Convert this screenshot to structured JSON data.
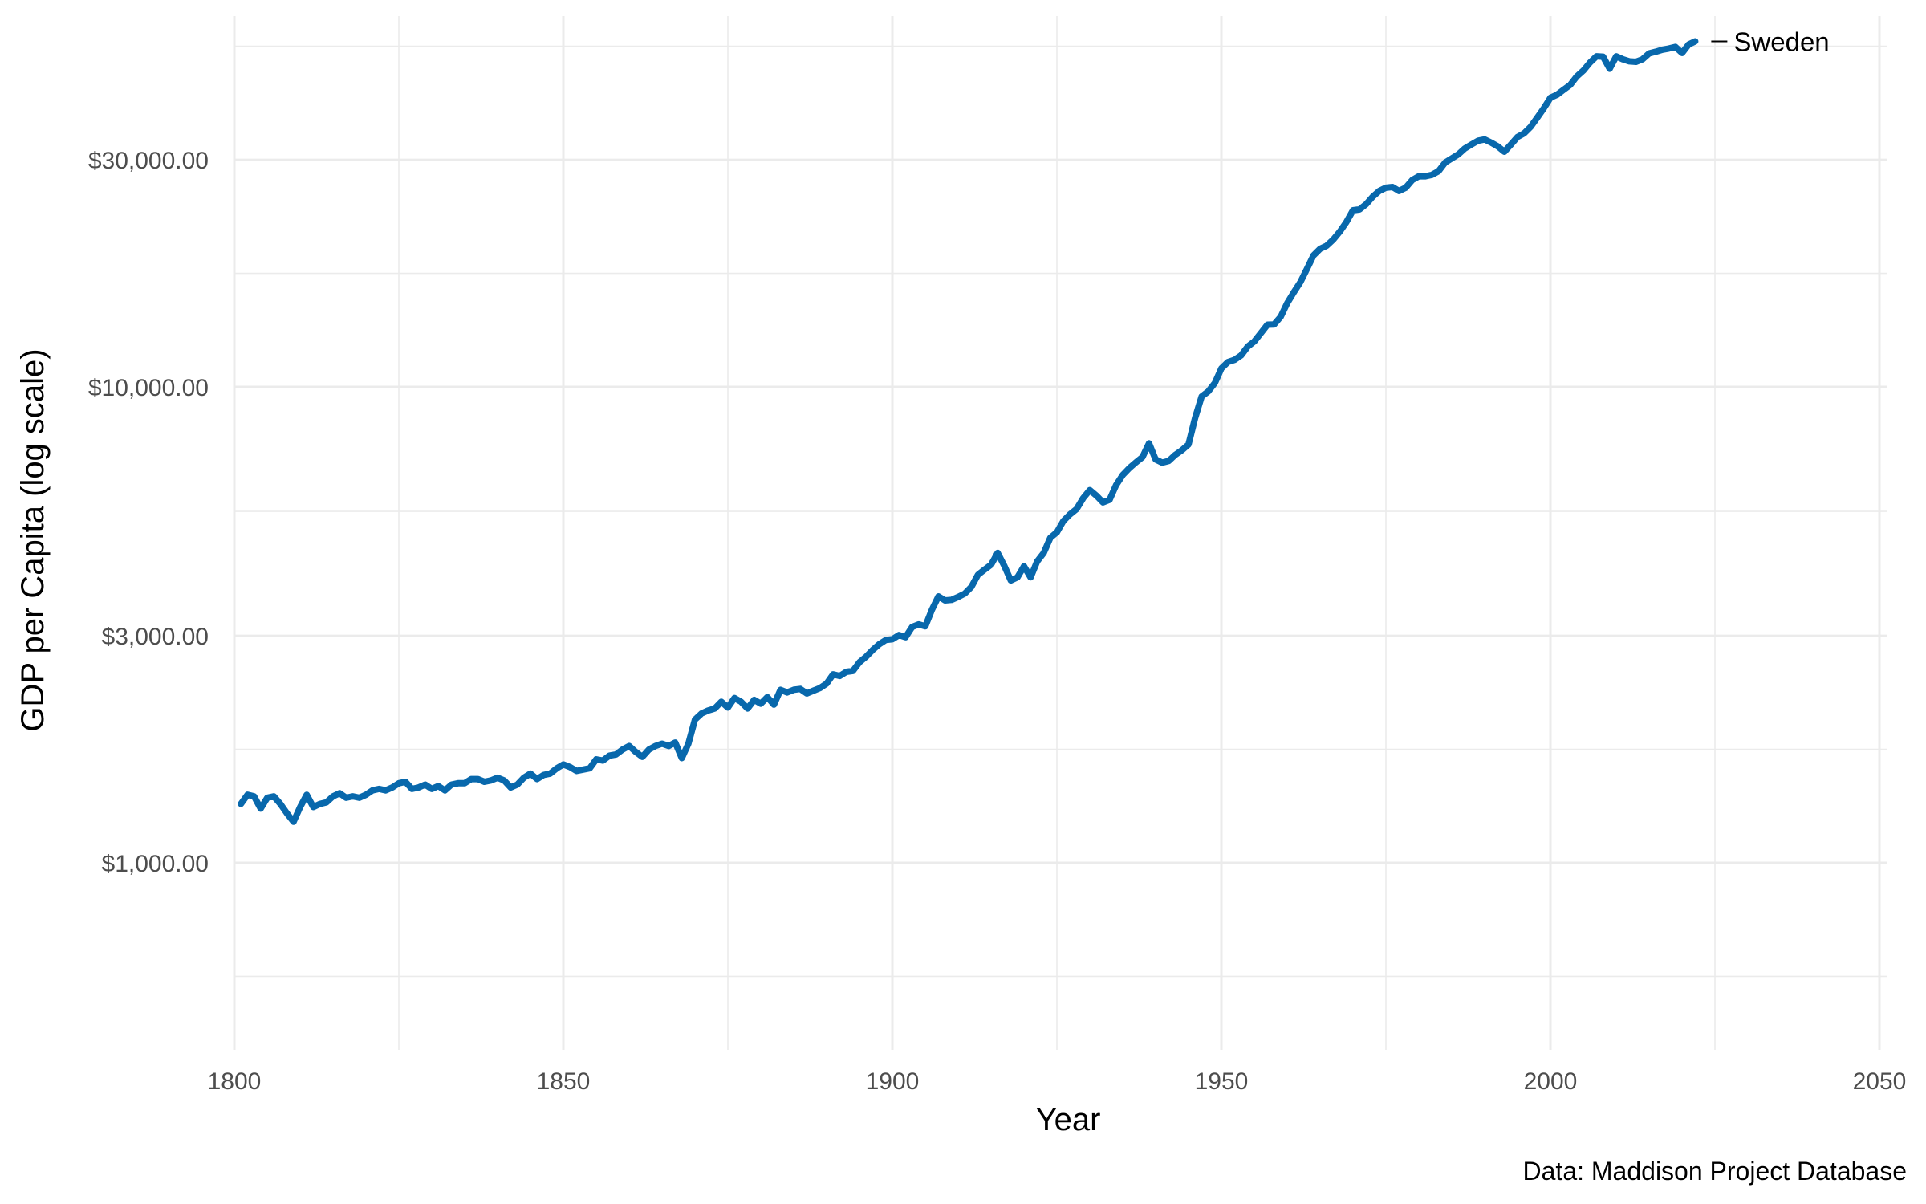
{
  "chart_data": {
    "type": "line",
    "title": "",
    "xlabel": "Year",
    "ylabel": "GDP per Capita (log scale)",
    "caption": "Data: Maddison Project Database",
    "y_scale": "log",
    "xlim": [
      1800,
      2050
    ],
    "ylim": [
      550,
      55000
    ],
    "x_ticks": [
      1800,
      1850,
      1900,
      1950,
      2000,
      2050
    ],
    "x_tick_labels": [
      "1800",
      "1850",
      "1900",
      "1950",
      "2000",
      "2050"
    ],
    "y_ticks": [
      1000,
      3000,
      10000,
      30000
    ],
    "y_tick_labels": [
      "$1,000.00",
      "$3,000.00",
      "$10,000.00",
      "$30,000.00"
    ],
    "grid": true,
    "legend": "none (direct label at line end)",
    "colors": {
      "line": "#0868ac",
      "grid": "#ebebeb",
      "tick_text": "#4d4d4d"
    },
    "series": [
      {
        "name": "Sweden",
        "points": [
          [
            1801,
            1330
          ],
          [
            1802,
            1390
          ],
          [
            1803,
            1380
          ],
          [
            1804,
            1300
          ],
          [
            1805,
            1370
          ],
          [
            1806,
            1380
          ],
          [
            1807,
            1330
          ],
          [
            1808,
            1270
          ],
          [
            1809,
            1220
          ],
          [
            1810,
            1310
          ],
          [
            1811,
            1390
          ],
          [
            1812,
            1310
          ],
          [
            1813,
            1330
          ],
          [
            1814,
            1340
          ],
          [
            1815,
            1380
          ],
          [
            1816,
            1400
          ],
          [
            1817,
            1370
          ],
          [
            1818,
            1380
          ],
          [
            1819,
            1370
          ],
          [
            1820,
            1390
          ],
          [
            1821,
            1420
          ],
          [
            1822,
            1430
          ],
          [
            1823,
            1420
          ],
          [
            1824,
            1440
          ],
          [
            1825,
            1470
          ],
          [
            1826,
            1480
          ],
          [
            1827,
            1430
          ],
          [
            1828,
            1440
          ],
          [
            1829,
            1460
          ],
          [
            1830,
            1430
          ],
          [
            1831,
            1450
          ],
          [
            1832,
            1420
          ],
          [
            1833,
            1460
          ],
          [
            1834,
            1470
          ],
          [
            1835,
            1470
          ],
          [
            1836,
            1500
          ],
          [
            1837,
            1500
          ],
          [
            1838,
            1480
          ],
          [
            1839,
            1490
          ],
          [
            1840,
            1510
          ],
          [
            1841,
            1490
          ],
          [
            1842,
            1440
          ],
          [
            1843,
            1460
          ],
          [
            1844,
            1510
          ],
          [
            1845,
            1540
          ],
          [
            1846,
            1500
          ],
          [
            1847,
            1530
          ],
          [
            1848,
            1540
          ],
          [
            1849,
            1580
          ],
          [
            1850,
            1610
          ],
          [
            1851,
            1590
          ],
          [
            1852,
            1560
          ],
          [
            1853,
            1570
          ],
          [
            1854,
            1580
          ],
          [
            1855,
            1650
          ],
          [
            1856,
            1640
          ],
          [
            1857,
            1680
          ],
          [
            1858,
            1690
          ],
          [
            1859,
            1730
          ],
          [
            1860,
            1760
          ],
          [
            1861,
            1710
          ],
          [
            1862,
            1670
          ],
          [
            1863,
            1730
          ],
          [
            1864,
            1760
          ],
          [
            1865,
            1780
          ],
          [
            1866,
            1760
          ],
          [
            1867,
            1790
          ],
          [
            1868,
            1660
          ],
          [
            1869,
            1780
          ],
          [
            1870,
            2000
          ],
          [
            1871,
            2060
          ],
          [
            1872,
            2090
          ],
          [
            1873,
            2110
          ],
          [
            1874,
            2180
          ],
          [
            1875,
            2120
          ],
          [
            1876,
            2220
          ],
          [
            1877,
            2180
          ],
          [
            1878,
            2110
          ],
          [
            1879,
            2200
          ],
          [
            1880,
            2160
          ],
          [
            1881,
            2230
          ],
          [
            1882,
            2150
          ],
          [
            1883,
            2310
          ],
          [
            1884,
            2280
          ],
          [
            1885,
            2310
          ],
          [
            1886,
            2320
          ],
          [
            1887,
            2270
          ],
          [
            1888,
            2300
          ],
          [
            1889,
            2330
          ],
          [
            1890,
            2380
          ],
          [
            1891,
            2490
          ],
          [
            1892,
            2470
          ],
          [
            1893,
            2520
          ],
          [
            1894,
            2530
          ],
          [
            1895,
            2640
          ],
          [
            1896,
            2710
          ],
          [
            1897,
            2800
          ],
          [
            1898,
            2880
          ],
          [
            1899,
            2940
          ],
          [
            1900,
            2950
          ],
          [
            1901,
            3010
          ],
          [
            1902,
            2980
          ],
          [
            1903,
            3130
          ],
          [
            1904,
            3170
          ],
          [
            1905,
            3140
          ],
          [
            1906,
            3400
          ],
          [
            1907,
            3630
          ],
          [
            1908,
            3560
          ],
          [
            1909,
            3570
          ],
          [
            1910,
            3620
          ],
          [
            1911,
            3680
          ],
          [
            1912,
            3800
          ],
          [
            1913,
            4030
          ],
          [
            1914,
            4130
          ],
          [
            1915,
            4230
          ],
          [
            1916,
            4480
          ],
          [
            1917,
            4210
          ],
          [
            1918,
            3920
          ],
          [
            1919,
            3980
          ],
          [
            1920,
            4200
          ],
          [
            1921,
            3980
          ],
          [
            1922,
            4300
          ],
          [
            1923,
            4480
          ],
          [
            1924,
            4820
          ],
          [
            1925,
            4950
          ],
          [
            1926,
            5230
          ],
          [
            1927,
            5400
          ],
          [
            1928,
            5540
          ],
          [
            1929,
            5840
          ],
          [
            1930,
            6070
          ],
          [
            1931,
            5910
          ],
          [
            1932,
            5720
          ],
          [
            1933,
            5790
          ],
          [
            1934,
            6220
          ],
          [
            1935,
            6530
          ],
          [
            1936,
            6750
          ],
          [
            1937,
            6940
          ],
          [
            1938,
            7120
          ],
          [
            1939,
            7610
          ],
          [
            1940,
            7040
          ],
          [
            1941,
            6930
          ],
          [
            1942,
            6990
          ],
          [
            1943,
            7200
          ],
          [
            1944,
            7360
          ],
          [
            1945,
            7570
          ],
          [
            1946,
            8600
          ],
          [
            1947,
            9550
          ],
          [
            1948,
            9780
          ],
          [
            1949,
            10190
          ],
          [
            1950,
            10940
          ],
          [
            1951,
            11280
          ],
          [
            1952,
            11400
          ],
          [
            1953,
            11650
          ],
          [
            1954,
            12150
          ],
          [
            1955,
            12460
          ],
          [
            1956,
            12970
          ],
          [
            1957,
            13510
          ],
          [
            1958,
            13520
          ],
          [
            1959,
            14030
          ],
          [
            1960,
            14990
          ],
          [
            1961,
            15800
          ],
          [
            1962,
            16600
          ],
          [
            1963,
            17700
          ],
          [
            1964,
            18900
          ],
          [
            1965,
            19500
          ],
          [
            1966,
            19800
          ],
          [
            1967,
            20400
          ],
          [
            1968,
            21200
          ],
          [
            1969,
            22200
          ],
          [
            1970,
            23500
          ],
          [
            1971,
            23600
          ],
          [
            1972,
            24200
          ],
          [
            1973,
            25100
          ],
          [
            1974,
            25800
          ],
          [
            1975,
            26200
          ],
          [
            1976,
            26300
          ],
          [
            1977,
            25800
          ],
          [
            1978,
            26200
          ],
          [
            1979,
            27200
          ],
          [
            1980,
            27700
          ],
          [
            1981,
            27700
          ],
          [
            1982,
            27900
          ],
          [
            1983,
            28400
          ],
          [
            1984,
            29600
          ],
          [
            1985,
            30200
          ],
          [
            1986,
            30800
          ],
          [
            1987,
            31700
          ],
          [
            1988,
            32300
          ],
          [
            1989,
            32900
          ],
          [
            1990,
            33100
          ],
          [
            1991,
            32600
          ],
          [
            1992,
            32000
          ],
          [
            1993,
            31200
          ],
          [
            1994,
            32300
          ],
          [
            1995,
            33500
          ],
          [
            1996,
            34100
          ],
          [
            1997,
            35200
          ],
          [
            1998,
            36800
          ],
          [
            1999,
            38500
          ],
          [
            2000,
            40500
          ],
          [
            2001,
            41100
          ],
          [
            2002,
            42100
          ],
          [
            2003,
            43100
          ],
          [
            2004,
            44900
          ],
          [
            2005,
            46200
          ],
          [
            2006,
            48000
          ],
          [
            2007,
            49500
          ],
          [
            2008,
            49400
          ],
          [
            2009,
            46600
          ],
          [
            2010,
            49500
          ],
          [
            2011,
            48800
          ],
          [
            2012,
            48300
          ],
          [
            2013,
            48200
          ],
          [
            2014,
            48800
          ],
          [
            2015,
            50200
          ],
          [
            2016,
            50600
          ],
          [
            2017,
            51100
          ],
          [
            2018,
            51400
          ],
          [
            2019,
            51800
          ],
          [
            2020,
            50300
          ],
          [
            2021,
            52400
          ],
          [
            2022,
            53200
          ]
        ]
      }
    ]
  }
}
